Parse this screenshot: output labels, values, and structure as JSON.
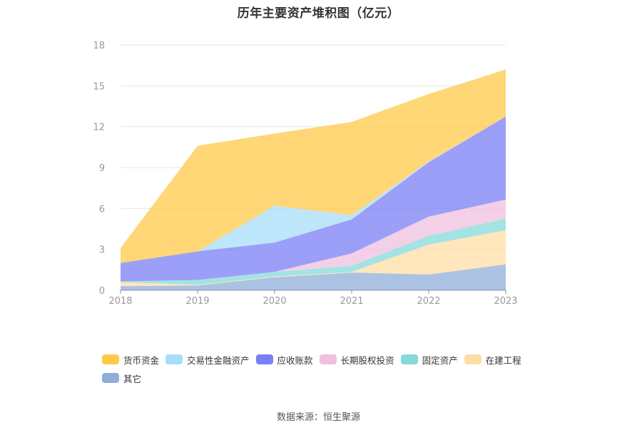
{
  "title": "历年主要资产堆积图（亿元）",
  "source": "数据来源：恒生聚源",
  "chart_data": {
    "type": "area",
    "stacked": true,
    "title": "历年主要资产堆积图（亿元）",
    "x": [
      "2018",
      "2019",
      "2020",
      "2021",
      "2022",
      "2023"
    ],
    "ylim": [
      0,
      18
    ],
    "yticks": [
      0,
      3,
      6,
      9,
      12,
      15,
      18
    ],
    "grid": true,
    "legend_position": "bottom",
    "series": [
      {
        "name": "其它",
        "color": "#8fadd9",
        "values": [
          0.3,
          0.35,
          0.95,
          1.3,
          1.15,
          1.9
        ]
      },
      {
        "name": "在建工程",
        "color": "#ffdda6",
        "values": [
          0.3,
          0.05,
          0.05,
          0.05,
          2.2,
          2.5
        ]
      },
      {
        "name": "固定资产",
        "color": "#85d9d9",
        "values": [
          0.05,
          0.35,
          0.35,
          0.45,
          0.65,
          0.85
        ]
      },
      {
        "name": "长期股权投资",
        "color": "#f0bfe0",
        "values": [
          0.0,
          0.0,
          0.0,
          0.9,
          1.4,
          1.4
        ]
      },
      {
        "name": "应收账款",
        "color": "#7b7ff5",
        "values": [
          1.35,
          2.1,
          2.15,
          2.5,
          4.0,
          6.1
        ]
      },
      {
        "name": "交易性金融资产",
        "color": "#a7ddfa",
        "values": [
          0.0,
          0.0,
          2.7,
          0.3,
          0.05,
          0.0
        ]
      },
      {
        "name": "货币资金",
        "color": "#ffc94a",
        "values": [
          1.1,
          7.75,
          5.3,
          6.85,
          4.95,
          3.45
        ]
      }
    ]
  },
  "legend_order": [
    "货币资金",
    "交易性金融资产",
    "应收账款",
    "长期股权投资",
    "固定资产",
    "在建工程",
    "其它"
  ]
}
